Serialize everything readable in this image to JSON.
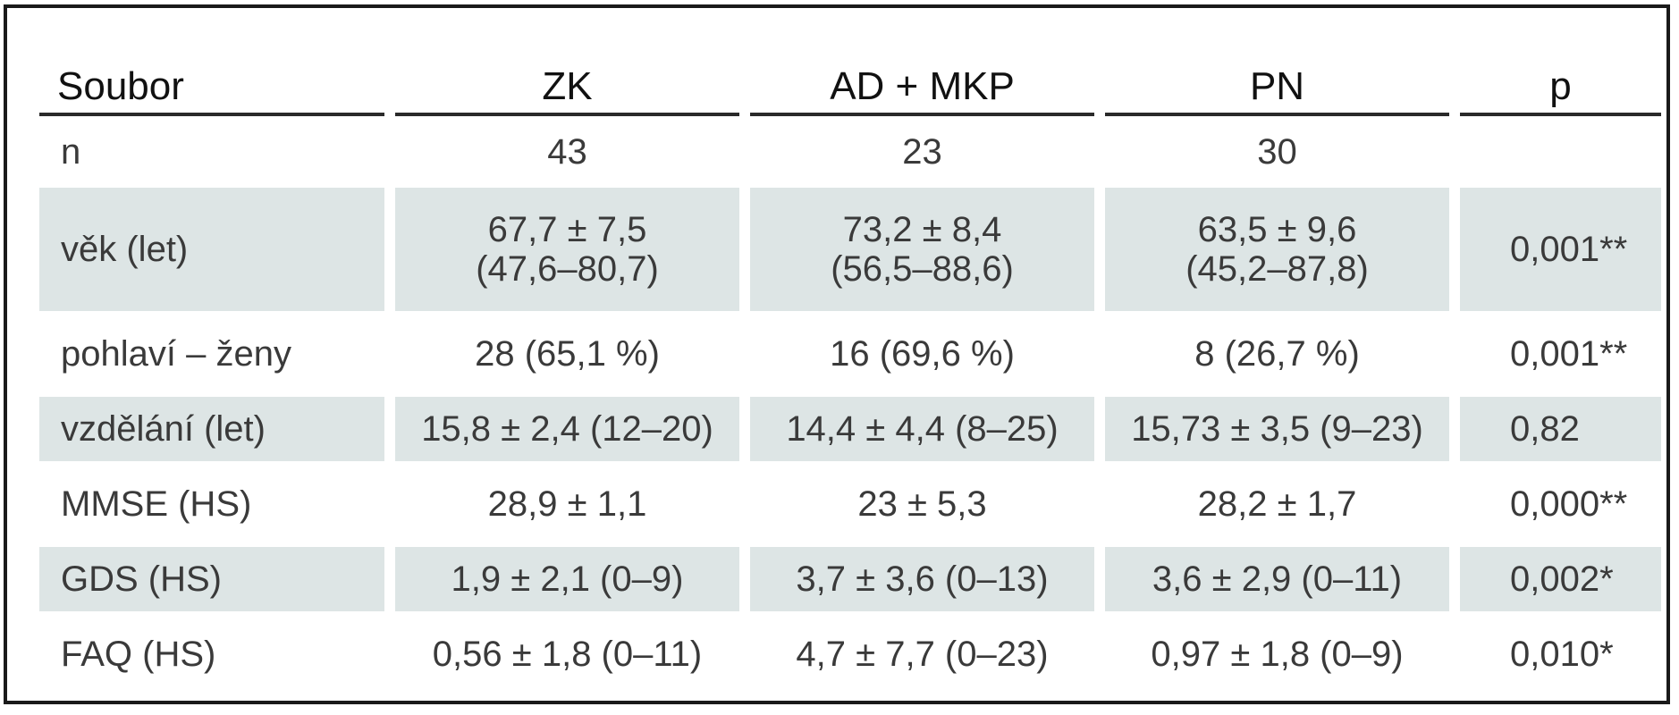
{
  "table": {
    "headers": [
      "Soubor",
      "ZK",
      "AD + MKP",
      "PN",
      "p"
    ],
    "rows": [
      {
        "label": "n",
        "values": [
          "43",
          "23",
          "30"
        ],
        "p": ""
      },
      {
        "label": "věk (let)",
        "values": [
          {
            "line1": "67,7 ± 7,5",
            "line2": "(47,6–80,7)"
          },
          {
            "line1": "73,2 ± 8,4",
            "line2": "(56,5–88,6)"
          },
          {
            "line1": "63,5 ± 9,6",
            "line2": "(45,2–87,8)"
          }
        ],
        "p": "0,001**"
      },
      {
        "label": "pohlaví – ženy",
        "values": [
          "28 (65,1 %)",
          "16 (69,6 %)",
          "8 (26,7 %)"
        ],
        "p": "0,001**"
      },
      {
        "label": "vzdělání (let)",
        "values": [
          "15,8 ± 2,4 (12–20)",
          "14,4 ± 4,4 (8–25)",
          "15,73 ± 3,5 (9–23)"
        ],
        "p": "0,82"
      },
      {
        "label": "MMSE (HS)",
        "values": [
          "28,9 ± 1,1",
          "23 ± 5,3",
          "28,2 ± 1,7"
        ],
        "p": "0,000**"
      },
      {
        "label": "GDS (HS)",
        "values": [
          "1,9 ± 2,1 (0–9)",
          "3,7 ± 3,6 (0–13)",
          "3,6 ± 2,9 (0–11)"
        ],
        "p": "0,002*"
      },
      {
        "label": "FAQ (HS)",
        "values": [
          "0,56 ± 1,8 (0–11)",
          "4,7 ± 7,7 (0–23)",
          "0,97 ± 1,8 (0–9)"
        ],
        "p": "0,010*"
      }
    ]
  },
  "colors": {
    "shaded_row": "#dde5e5",
    "border": "#1a1a1a"
  }
}
